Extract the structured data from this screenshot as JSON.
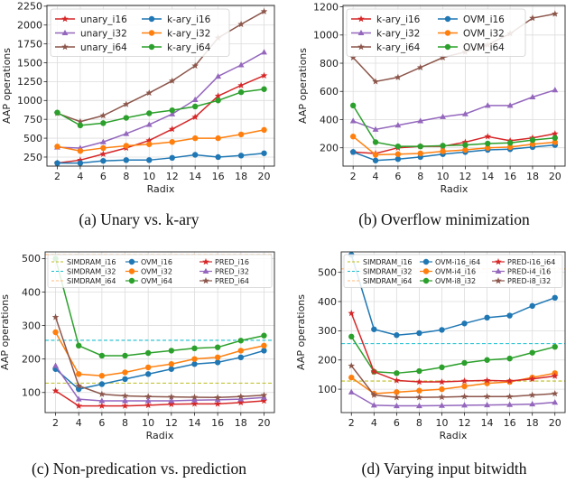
{
  "colors": {
    "red": "#d62728",
    "purple": "#9467bd",
    "brown": "#8c564b",
    "blue": "#1f77b4",
    "orange": "#ff7f0e",
    "green": "#2ca02c",
    "cyan": "#17becf",
    "olive": "#bcbd22",
    "peach": "#ffbb78"
  },
  "chart_data": [
    {
      "type": "line",
      "caption": "(a) Unary vs. k-ary",
      "xlabel": "Radix",
      "ylabel": "AAP operations",
      "x": [
        2,
        4,
        6,
        8,
        10,
        12,
        14,
        16,
        18,
        20
      ],
      "xticks": [
        2,
        4,
        6,
        8,
        10,
        12,
        14,
        16,
        18,
        20
      ],
      "ylim": [
        130,
        2260
      ],
      "yticks": [
        250,
        500,
        750,
        1000,
        1250,
        1500,
        1750,
        2000,
        2250
      ],
      "grid": true,
      "legend": {
        "placement": "top-left",
        "columns": 2,
        "small": false
      },
      "series": [
        {
          "name": "unary_i16",
          "color": "#d62728",
          "marker": "star",
          "values": [
            170,
            210,
            290,
            370,
            470,
            620,
            780,
            1060,
            1200,
            1330
          ]
        },
        {
          "name": "unary_i32",
          "color": "#9467bd",
          "marker": "triangle",
          "values": [
            380,
            370,
            450,
            560,
            680,
            820,
            1010,
            1320,
            1470,
            1640
          ]
        },
        {
          "name": "unary_i64",
          "color": "#8c564b",
          "marker": "star",
          "values": [
            830,
            720,
            800,
            950,
            1100,
            1260,
            1460,
            1830,
            2010,
            2180
          ]
        },
        {
          "name": "k-ary_i16",
          "color": "#1f77b4",
          "marker": "circle",
          "values": [
            170,
            170,
            200,
            210,
            210,
            240,
            280,
            250,
            270,
            300
          ]
        },
        {
          "name": "k-ary_i32",
          "color": "#ff7f0e",
          "marker": "circle",
          "values": [
            390,
            330,
            370,
            400,
            420,
            450,
            500,
            500,
            550,
            610
          ]
        },
        {
          "name": "k-ary_i64",
          "color": "#2ca02c",
          "marker": "circle",
          "values": [
            840,
            670,
            700,
            770,
            830,
            870,
            920,
            1000,
            1110,
            1150
          ]
        }
      ]
    },
    {
      "type": "line",
      "caption": "(b) Overflow minimization",
      "xlabel": "Radix",
      "ylabel": "AAP operations",
      "x": [
        2,
        4,
        6,
        8,
        10,
        12,
        14,
        16,
        18,
        20
      ],
      "xticks": [
        2,
        4,
        6,
        8,
        10,
        12,
        14,
        16,
        18,
        20
      ],
      "ylim": [
        70,
        1210
      ],
      "yticks": [
        200,
        400,
        600,
        800,
        1000,
        1200
      ],
      "grid": true,
      "legend": {
        "placement": "top-left",
        "columns": 2,
        "small": false
      },
      "series": [
        {
          "name": "k-ary_i16",
          "color": "#d62728",
          "marker": "star",
          "values": [
            170,
            160,
            200,
            210,
            210,
            240,
            280,
            250,
            270,
            300
          ]
        },
        {
          "name": "k-ary_i32",
          "color": "#9467bd",
          "marker": "triangle",
          "values": [
            390,
            330,
            360,
            390,
            420,
            440,
            500,
            500,
            560,
            610
          ]
        },
        {
          "name": "k-ary_i64",
          "color": "#8c564b",
          "marker": "star",
          "values": [
            840,
            670,
            700,
            770,
            840,
            880,
            930,
            1010,
            1120,
            1150
          ]
        },
        {
          "name": "OVM_i16",
          "color": "#1f77b4",
          "marker": "circle",
          "values": [
            170,
            110,
            120,
            135,
            155,
            170,
            185,
            190,
            205,
            220
          ]
        },
        {
          "name": "OVM_i32",
          "color": "#ff7f0e",
          "marker": "circle",
          "values": [
            280,
            150,
            155,
            160,
            175,
            185,
            200,
            205,
            225,
            240
          ]
        },
        {
          "name": "OVM_i64",
          "color": "#2ca02c",
          "marker": "circle",
          "values": [
            500,
            240,
            210,
            210,
            215,
            220,
            230,
            235,
            255,
            270
          ]
        }
      ]
    },
    {
      "type": "line",
      "caption": "(c) Non-predication vs. prediction",
      "xlabel": "Radix",
      "ylabel": "AAP operations",
      "x": [
        2,
        4,
        6,
        8,
        10,
        12,
        14,
        16,
        18,
        20
      ],
      "xticks": [
        2,
        4,
        6,
        8,
        10,
        12,
        14,
        16,
        18,
        20
      ],
      "ylim": [
        40,
        520
      ],
      "yticks": [
        100,
        200,
        300,
        400,
        500
      ],
      "grid": true,
      "legend": {
        "placement": "top-right",
        "columns": 3,
        "small": true
      },
      "hlines": [
        {
          "name": "SIMDRAM_i16",
          "color": "#bcbd22",
          "value": 128
        },
        {
          "name": "SIMDRAM_i32",
          "color": "#17becf",
          "value": 256
        },
        {
          "name": "SIMDRAM_i64",
          "color": "#ffbb78",
          "value": 512
        }
      ],
      "series": [
        {
          "name": "OVM_i16",
          "color": "#1f77b4",
          "marker": "circle",
          "values": [
            170,
            110,
            125,
            140,
            155,
            170,
            185,
            190,
            205,
            225
          ]
        },
        {
          "name": "OVM_i32",
          "color": "#ff7f0e",
          "marker": "circle",
          "values": [
            280,
            155,
            150,
            160,
            175,
            185,
            200,
            205,
            225,
            240
          ]
        },
        {
          "name": "OVM_i64",
          "color": "#2ca02c",
          "marker": "circle",
          "values": [
            500,
            240,
            210,
            210,
            218,
            225,
            232,
            235,
            255,
            270
          ]
        },
        {
          "name": "PRED_i16",
          "color": "#d62728",
          "marker": "star",
          "values": [
            105,
            60,
            60,
            60,
            62,
            65,
            66,
            66,
            70,
            75
          ]
        },
        {
          "name": "PRED_i32",
          "color": "#9467bd",
          "marker": "triangle",
          "values": [
            180,
            80,
            75,
            75,
            75,
            75,
            77,
            78,
            80,
            85
          ]
        },
        {
          "name": "PRED_i64",
          "color": "#8c564b",
          "marker": "star",
          "values": [
            325,
            120,
            95,
            90,
            88,
            87,
            86,
            85,
            88,
            92
          ]
        }
      ]
    },
    {
      "type": "line",
      "caption": "(d) Varying input bitwidth",
      "xlabel": "Radix",
      "ylabel": "AAP operations",
      "x": [
        2,
        4,
        6,
        8,
        10,
        12,
        14,
        16,
        18,
        20
      ],
      "xticks": [
        2,
        4,
        6,
        8,
        10,
        12,
        14,
        16,
        18,
        20
      ],
      "ylim": [
        20,
        570
      ],
      "yticks": [
        100,
        200,
        300,
        400,
        500
      ],
      "grid": true,
      "legend": {
        "placement": "top-right",
        "columns": 3,
        "small": true
      },
      "hlines": [
        {
          "name": "SIMDRAM_i16",
          "color": "#bcbd22",
          "value": 128
        },
        {
          "name": "SIMDRAM_i32",
          "color": "#17becf",
          "value": 256
        },
        {
          "name": "SIMDRAM_i64",
          "color": "#ffbb78",
          "value": 512
        }
      ],
      "series": [
        {
          "name": "OVM-i16_i64",
          "color": "#1f77b4",
          "marker": "circle",
          "values": [
            560,
            305,
            285,
            292,
            303,
            325,
            345,
            352,
            385,
            413
          ]
        },
        {
          "name": "OVM-i4_i16",
          "color": "#ff7f0e",
          "marker": "circle",
          "values": [
            140,
            85,
            90,
            95,
            100,
            110,
            120,
            125,
            140,
            155
          ]
        },
        {
          "name": "OVM-i8_i32",
          "color": "#2ca02c",
          "marker": "circle",
          "values": [
            280,
            160,
            155,
            162,
            175,
            190,
            200,
            205,
            225,
            245
          ]
        },
        {
          "name": "PRED-i16_i64",
          "color": "#d62728",
          "marker": "star",
          "values": [
            360,
            160,
            130,
            125,
            125,
            128,
            130,
            128,
            135,
            145
          ]
        },
        {
          "name": "PRED-i4_i16",
          "color": "#9467bd",
          "marker": "triangle",
          "values": [
            90,
            45,
            43,
            43,
            44,
            45,
            46,
            47,
            49,
            55
          ]
        },
        {
          "name": "PRED-i8_i32",
          "color": "#8c564b",
          "marker": "star",
          "values": [
            180,
            80,
            72,
            72,
            73,
            75,
            75,
            75,
            80,
            85
          ]
        }
      ]
    }
  ]
}
